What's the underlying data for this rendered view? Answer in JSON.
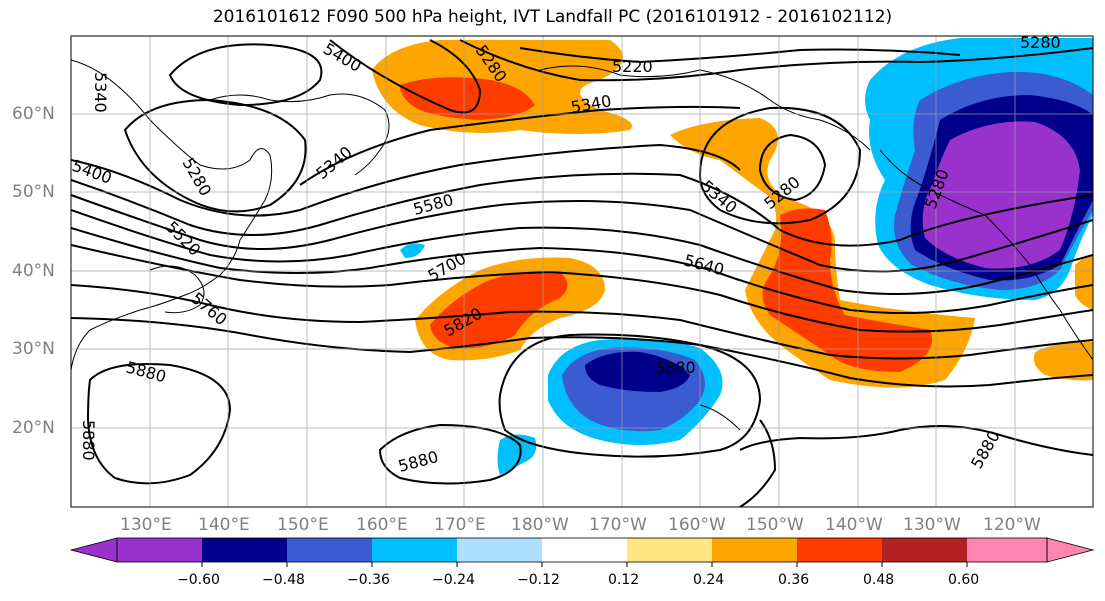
{
  "title": "2016101612 F090 500 hPa height, IVT Landfall PC (2016101912 - 2016102112)",
  "lat_labels": [
    "60°N",
    "50°N",
    "40°N",
    "30°N",
    "20°N"
  ],
  "lon_labels": [
    "130°E",
    "140°E",
    "150°E",
    "160°E",
    "170°E",
    "180°W",
    "170°W",
    "160°W",
    "150°W",
    "140°W",
    "130°W",
    "120°W"
  ],
  "contour_labels": [
    "5400",
    "5280",
    "5220",
    "5280",
    "5340",
    "5340",
    "5340",
    "5280",
    "5580",
    "5520",
    "5340",
    "5280",
    "5640",
    "5700",
    "5760",
    "5820",
    "5880",
    "5880",
    "5880",
    "5880",
    "5400",
    "5280",
    "5880"
  ],
  "colorbar": {
    "ticks": [
      "−0.60",
      "−0.48",
      "−0.36",
      "−0.24",
      "−0.12",
      "0.12",
      "0.24",
      "0.36",
      "0.48",
      "0.60"
    ],
    "colors": [
      "#9932cc",
      "#00008b",
      "#3a5bd1",
      "#00bfff",
      "#b0e0ff",
      "#ffffff",
      "#ffe680",
      "#ffa500",
      "#ff3c00",
      "#b22222",
      "#ff85b0"
    ]
  }
}
